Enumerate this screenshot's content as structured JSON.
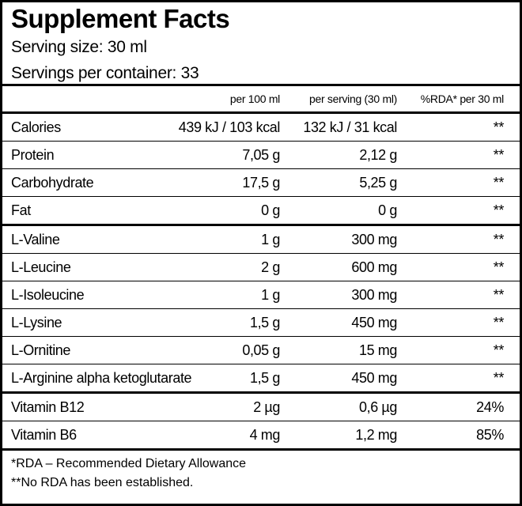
{
  "header": {
    "title": "Supplement Facts",
    "serving_size": "Serving size: 30 ml",
    "servings_per_container": "Servings per container: 33"
  },
  "table": {
    "columns": [
      "per 100 ml",
      "per serving (30 ml)",
      "%RDA* per 30 ml"
    ],
    "sections": [
      [
        [
          "Calories",
          "439 kJ / 103 kcal",
          "132 kJ / 31 kcal",
          "**"
        ],
        [
          "Protein",
          "7,05 g",
          "2,12 g",
          "**"
        ],
        [
          "Carbohydrate",
          "17,5 g",
          "5,25 g",
          "**"
        ],
        [
          "Fat",
          "0 g",
          "0 g",
          "**"
        ]
      ],
      [
        [
          "L-Valine",
          "1 g",
          "300 mg",
          "**"
        ],
        [
          "L-Leucine",
          "2 g",
          "600 mg",
          "**"
        ],
        [
          "L-Isoleucine",
          "1 g",
          "300 mg",
          "**"
        ],
        [
          "L-Lysine",
          "1,5 g",
          "450 mg",
          "**"
        ],
        [
          "L-Ornitine",
          "0,05 g",
          "15 mg",
          "**"
        ],
        [
          "L-Arginine alpha ketoglutarate",
          "1,5 g",
          "450 mg",
          "**"
        ]
      ],
      [
        [
          "Vitamin B12",
          "2 µg",
          "0,6 µg",
          "24%"
        ],
        [
          "Vitamin B6",
          "4 mg",
          "1,2 mg",
          "85%"
        ]
      ]
    ]
  },
  "footnotes": [
    "*RDA – Recommended Dietary Allowance",
    "**No RDA has been established."
  ]
}
